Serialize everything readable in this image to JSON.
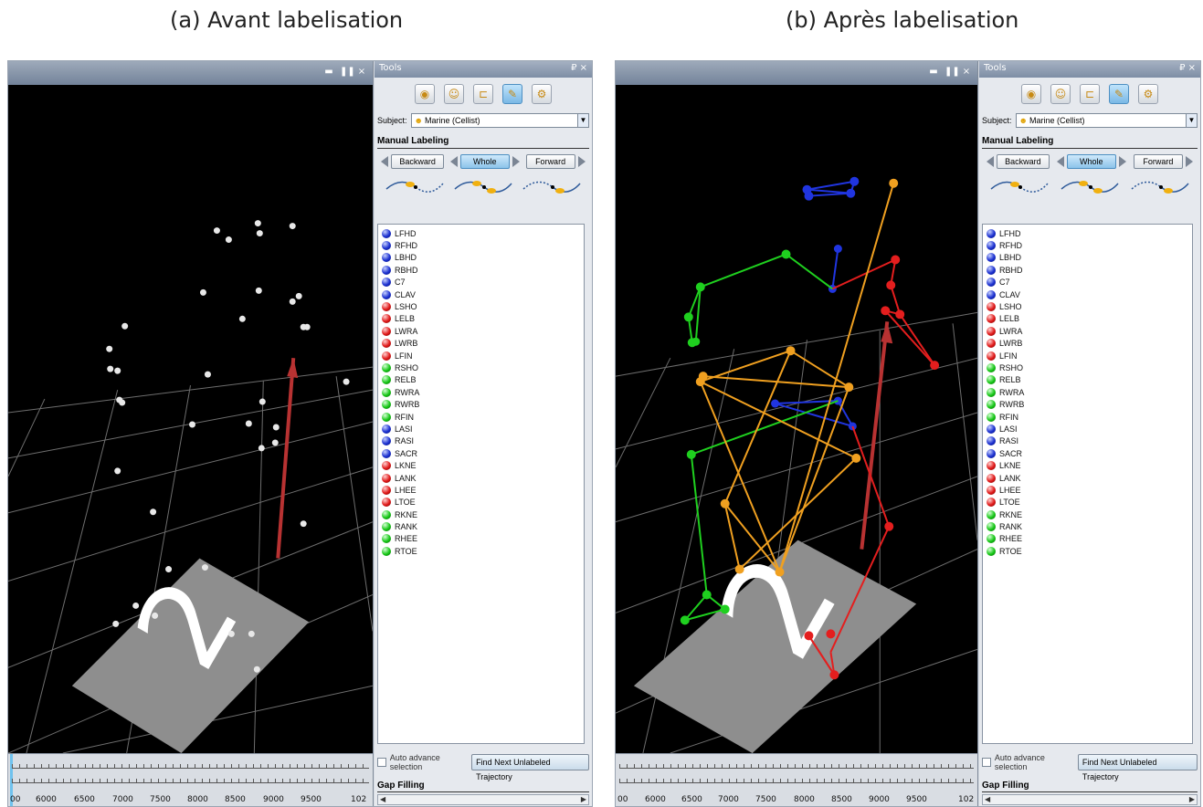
{
  "captions": {
    "a": "(a) Avant labelisation",
    "b": "(b) Après labelisation"
  },
  "viewport": {
    "controls": [
      "▬",
      "❚❚",
      "×"
    ]
  },
  "tools": {
    "title": "Tools",
    "title_controls": "₽ ×",
    "toolbar_icons": [
      "subject-icon",
      "labeling-icon",
      "gap-fill-icon",
      "label-tool-icon",
      "settings-icon"
    ],
    "subject_label": "Subject:",
    "subject_value": "Marine (Cellist)",
    "manual_labeling": "Manual Labeling",
    "buttons": {
      "backward": "Backward",
      "whole": "Whole",
      "forward": "Forward"
    },
    "markers": [
      {
        "name": "LFHD",
        "color": "blue"
      },
      {
        "name": "RFHD",
        "color": "blue"
      },
      {
        "name": "LBHD",
        "color": "blue"
      },
      {
        "name": "RBHD",
        "color": "blue"
      },
      {
        "name": "C7",
        "color": "blue"
      },
      {
        "name": "CLAV",
        "color": "blue"
      },
      {
        "name": "LSHO",
        "color": "red"
      },
      {
        "name": "LELB",
        "color": "red"
      },
      {
        "name": "LWRA",
        "color": "red"
      },
      {
        "name": "LWRB",
        "color": "red"
      },
      {
        "name": "LFIN",
        "color": "red"
      },
      {
        "name": "RSHO",
        "color": "green"
      },
      {
        "name": "RELB",
        "color": "green"
      },
      {
        "name": "RWRA",
        "color": "green"
      },
      {
        "name": "RWRB",
        "color": "green"
      },
      {
        "name": "RFIN",
        "color": "green"
      },
      {
        "name": "LASI",
        "color": "blue"
      },
      {
        "name": "RASI",
        "color": "blue"
      },
      {
        "name": "SACR",
        "color": "blue"
      },
      {
        "name": "LKNE",
        "color": "red"
      },
      {
        "name": "LANK",
        "color": "red"
      },
      {
        "name": "LHEE",
        "color": "red"
      },
      {
        "name": "LTOE",
        "color": "red"
      },
      {
        "name": "RKNE",
        "color": "green"
      },
      {
        "name": "RANK",
        "color": "green"
      },
      {
        "name": "RHEE",
        "color": "green"
      },
      {
        "name": "RTOE",
        "color": "green"
      }
    ],
    "auto_advance": "Auto advance selection",
    "find_next": "Find Next Unlabeled Trajectory",
    "gap_filling": "Gap Filling"
  },
  "timeline": {
    "ticks": [
      "00",
      "6000",
      "6500",
      "7000",
      "7500",
      "8000",
      "8500",
      "9000",
      "9500",
      "102"
    ]
  },
  "floor_label": "2",
  "colors": {
    "blue": "#1a2fd0",
    "red": "#e01818",
    "green": "#16c716",
    "orange": "#f0a020"
  }
}
